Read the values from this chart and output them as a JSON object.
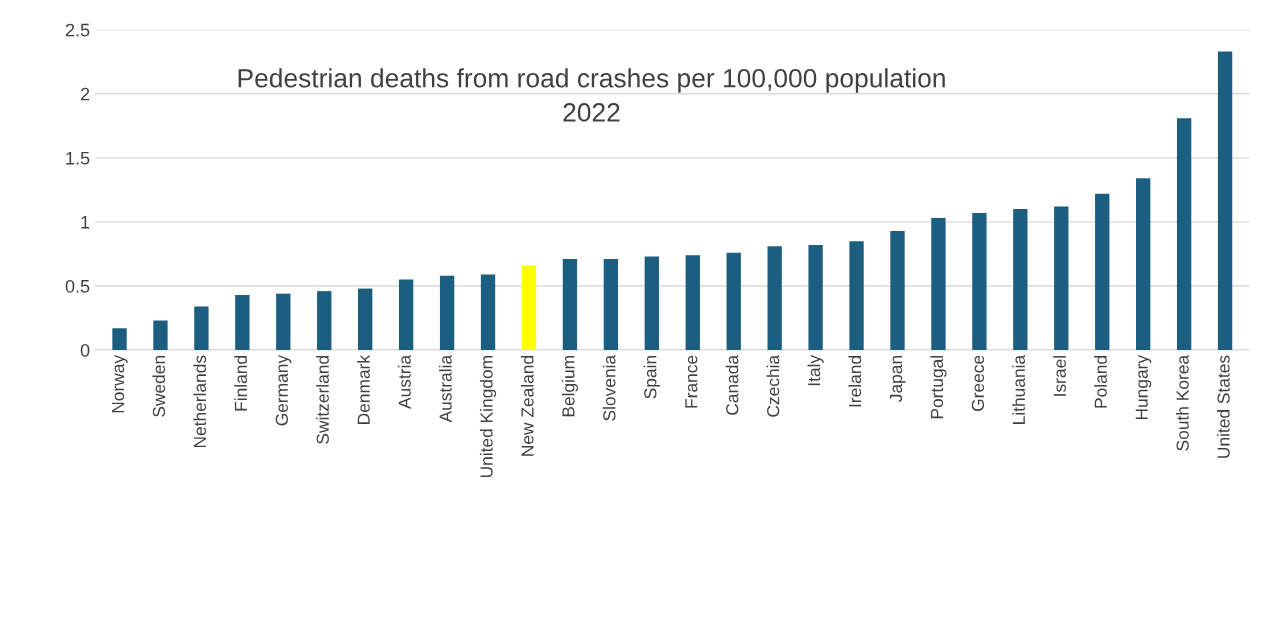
{
  "chart_data": {
    "type": "bar",
    "title": "Pedestrian deaths from road crashes per 100,000 population\n2022",
    "categories": [
      "Norway",
      "Sweden",
      "Netherlands",
      "Finland",
      "Germany",
      "Switzerland",
      "Denmark",
      "Austria",
      "Australia",
      "United Kingdom",
      "New Zealand",
      "Belgium",
      "Slovenia",
      "Spain",
      "France",
      "Canada",
      "Czechia",
      "Italy",
      "Ireland",
      "Japan",
      "Portugal",
      "Greece",
      "Lithuania",
      "Israel",
      "Poland",
      "Hungary",
      "South Korea",
      "United States"
    ],
    "values": [
      0.17,
      0.23,
      0.34,
      0.43,
      0.44,
      0.46,
      0.48,
      0.55,
      0.58,
      0.59,
      0.66,
      0.71,
      0.71,
      0.73,
      0.74,
      0.76,
      0.81,
      0.82,
      0.85,
      0.93,
      1.03,
      1.07,
      1.1,
      1.12,
      1.22,
      1.34,
      1.81,
      2.33
    ],
    "colors": [
      "#1b5e80",
      "#1b5e80",
      "#1b5e80",
      "#1b5e80",
      "#1b5e80",
      "#1b5e80",
      "#1b5e80",
      "#1b5e80",
      "#1b5e80",
      "#1b5e80",
      "#ffff00",
      "#1b5e80",
      "#1b5e80",
      "#1b5e80",
      "#1b5e80",
      "#1b5e80",
      "#1b5e80",
      "#1b5e80",
      "#1b5e80",
      "#1b5e80",
      "#1b5e80",
      "#1b5e80",
      "#1b5e80",
      "#1b5e80",
      "#1b5e80",
      "#1b5e80",
      "#1b5e80",
      "#1b5e80"
    ],
    "ylim": [
      0,
      2.5
    ],
    "yticks": [
      0,
      0.5,
      1,
      1.5,
      2,
      2.5
    ],
    "grid": "y",
    "legend": false
  }
}
